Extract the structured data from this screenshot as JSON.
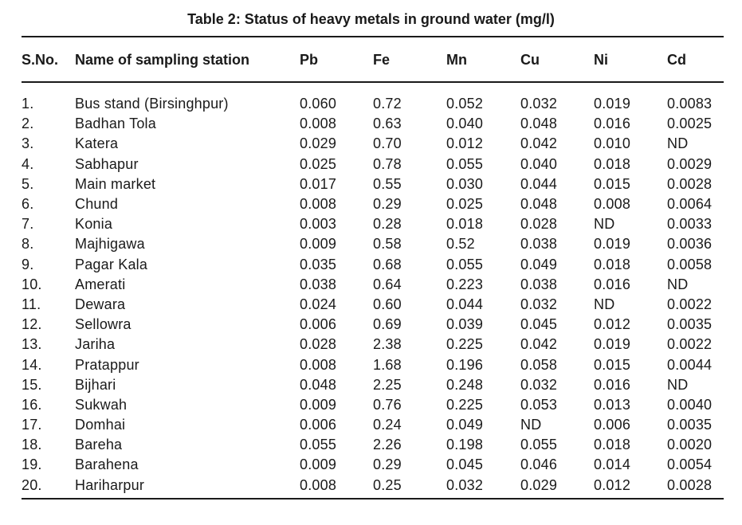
{
  "title": "Table 2: Status of heavy metals in ground water (mg/l)",
  "headers": [
    "S.No.",
    "Name of sampling station",
    "Pb",
    "Fe",
    "Mn",
    "Cu",
    "Ni",
    "Cd"
  ],
  "rows": [
    [
      "1.",
      "Bus stand (Birsinghpur)",
      "0.060",
      "0.72",
      "0.052",
      "0.032",
      "0.019",
      "0.0083"
    ],
    [
      "2.",
      "Badhan Tola",
      "0.008",
      "0.63",
      "0.040",
      "0.048",
      "0.016",
      "0.0025"
    ],
    [
      "3.",
      "Katera",
      "0.029",
      "0.70",
      "0.012",
      "0.042",
      "0.010",
      "ND"
    ],
    [
      "4.",
      "Sabhapur",
      "0.025",
      "0.78",
      "0.055",
      "0.040",
      "0.018",
      "0.0029"
    ],
    [
      "5.",
      "Main market",
      "0.017",
      "0.55",
      "0.030",
      "0.044",
      "0.015",
      "0.0028"
    ],
    [
      "6.",
      "Chund",
      "0.008",
      "0.29",
      "0.025",
      "0.048",
      "0.008",
      "0.0064"
    ],
    [
      "7.",
      "Konia",
      "0.003",
      "0.28",
      "0.018",
      "0.028",
      "ND",
      "0.0033"
    ],
    [
      "8.",
      "Majhigawa",
      "0.009",
      "0.58",
      "0.52",
      "0.038",
      "0.019",
      "0.0036"
    ],
    [
      "9.",
      "Pagar Kala",
      "0.035",
      "0.68",
      "0.055",
      "0.049",
      "0.018",
      "0.0058"
    ],
    [
      "10.",
      "Amerati",
      "0.038",
      "0.64",
      "0.223",
      "0.038",
      "0.016",
      "ND"
    ],
    [
      "11.",
      "Dewara",
      "0.024",
      "0.60",
      "0.044",
      "0.032",
      "ND",
      "0.0022"
    ],
    [
      "12.",
      "Sellowra",
      "0.006",
      "0.69",
      "0.039",
      "0.045",
      "0.012",
      "0.0035"
    ],
    [
      "13.",
      "Jariha",
      "0.028",
      "2.38",
      "0.225",
      "0.042",
      "0.019",
      "0.0022"
    ],
    [
      "14.",
      "Pratappur",
      "0.008",
      "1.68",
      "0.196",
      "0.058",
      "0.015",
      "0.0044"
    ],
    [
      "15.",
      "Bijhari",
      "0.048",
      "2.25",
      "0.248",
      "0.032",
      "0.016",
      "ND"
    ],
    [
      "16.",
      "Sukwah",
      "0.009",
      "0.76",
      "0.225",
      "0.053",
      "0.013",
      "0.0040"
    ],
    [
      "17.",
      "Domhai",
      "0.006",
      "0.24",
      "0.049",
      "ND",
      "0.006",
      "0.0035"
    ],
    [
      "18.",
      "Bareha",
      "0.055",
      "2.26",
      "0.198",
      "0.055",
      "0.018",
      "0.0020"
    ],
    [
      "19.",
      "Barahena",
      "0.009",
      "0.29",
      "0.045",
      "0.046",
      "0.014",
      "0.0054"
    ],
    [
      "20.",
      "Hariharpur",
      "0.008",
      "0.25",
      "0.032",
      "0.029",
      "0.012",
      "0.0028"
    ]
  ]
}
